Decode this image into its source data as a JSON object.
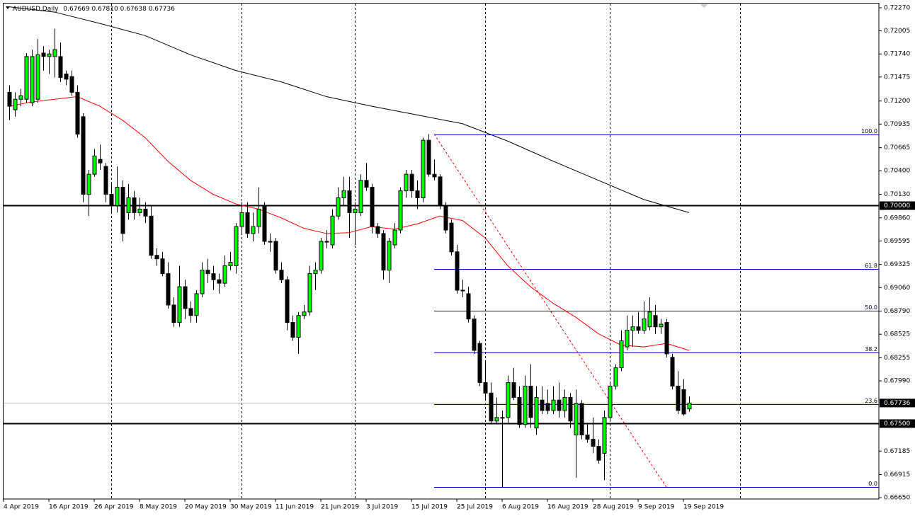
{
  "chart_data": {
    "type": "candlestick",
    "title": "AUDUSD,Daily",
    "header_ohlc": [
      "0.67669",
      "0.67810",
      "0.67638",
      "0.67736"
    ],
    "up_color": "#00ff00",
    "down_color": "#000000",
    "categories": [
      "4 Apr 2019",
      null,
      null,
      null,
      null,
      null,
      null,
      null,
      "16 Apr 2019",
      null,
      null,
      null,
      null,
      null,
      null,
      null,
      "26 Apr 2019",
      null,
      null,
      null,
      null,
      null,
      null,
      null,
      "8 May 2019",
      null,
      null,
      null,
      null,
      null,
      null,
      null,
      "20 May 2019",
      null,
      null,
      null,
      null,
      null,
      null,
      null,
      "30 May 2019",
      null,
      null,
      null,
      null,
      null,
      null,
      null,
      "11 Jun 2019",
      null,
      null,
      null,
      null,
      null,
      null,
      null,
      "21 Jun 2019",
      null,
      null,
      null,
      null,
      null,
      null,
      null,
      "3 Jul 2019",
      null,
      null,
      null,
      null,
      null,
      null,
      null,
      "15 Jul 2019",
      null,
      null,
      null,
      null,
      null,
      null,
      null,
      "25 Jul 2019",
      null,
      null,
      null,
      null,
      null,
      null,
      null,
      "6 Aug 2019",
      null,
      null,
      null,
      null,
      null,
      null,
      null,
      "16 Aug 2019",
      null,
      null,
      null,
      null,
      null,
      null,
      null,
      "28 Aug 2019",
      null,
      null,
      null,
      null,
      null,
      null,
      null,
      "9 Sep 2019",
      null,
      null,
      null,
      null,
      null,
      null,
      null,
      "19 Sep 2019"
    ],
    "open": [
      0.713,
      0.711,
      0.7122,
      0.7122,
      0.7118,
      0.7122,
      0.7175,
      0.7171,
      0.7171,
      0.7171,
      0.7151,
      0.7148,
      0.713,
      0.7102,
      0.7013,
      0.7036,
      0.7053,
      0.7045,
      0.7013,
      0.7,
      0.7021,
      0.6992,
      0.7009,
      0.6992,
      0.6996,
      0.6988,
      0.6943,
      0.6939,
      0.6922,
      0.6886,
      0.6866,
      0.6907,
      0.6882,
      0.6874,
      0.6899,
      0.6926,
      0.6922,
      0.6915,
      0.6911,
      0.6931,
      0.6931,
      0.6976,
      0.6992,
      0.6968,
      0.6976,
      0.7,
      0.6959,
      0.6959,
      0.6926,
      0.6915,
      0.6866,
      0.6849,
      0.6874,
      0.6878,
      0.6922,
      0.6926,
      0.6959,
      0.6955,
      0.6988,
      0.7009,
      0.7017,
      0.6992,
      0.6992,
      0.7029,
      0.7021,
      0.6976,
      0.6968,
      0.6926,
      0.6955,
      0.6972,
      0.7017,
      0.7036,
      0.7017,
      0.7009,
      0.7075,
      0.7036,
      0.7033,
      0.7,
      0.698,
      0.6947,
      0.6903,
      0.6899,
      0.687,
      0.6842,
      0.6797,
      0.6785,
      0.6753,
      0.6757,
      0.6757,
      0.6797,
      0.678,
      0.6749,
      0.6793,
      0.6745,
      0.6777,
      0.6773,
      0.6765,
      0.6777,
      0.6765,
      0.678,
      0.6737,
      0.6773,
      0.6737,
      0.6732,
      0.6724,
      0.6716,
      0.6757,
      0.6793,
      0.6814,
      0.6838,
      0.6857,
      0.6861,
      0.6857,
      0.6861,
      0.6874,
      0.6861,
      0.6866,
      0.6826,
      0.6793,
      0.6789,
      0.67669
    ],
    "high": [
      0.7138,
      0.713,
      0.7134,
      0.7175,
      0.7179,
      0.7191,
      0.7183,
      0.7179,
      0.7203,
      0.7187,
      0.7155,
      0.7155,
      0.7138,
      0.7106,
      0.7041,
      0.7065,
      0.707,
      0.7049,
      0.7025,
      0.7045,
      0.7029,
      0.7025,
      0.7017,
      0.7009,
      0.7004,
      0.7,
      0.6951,
      0.6947,
      0.6935,
      0.6895,
      0.6931,
      0.6915,
      0.689,
      0.6903,
      0.6935,
      0.6939,
      0.6931,
      0.6922,
      0.6943,
      0.6947,
      0.698,
      0.7004,
      0.7004,
      0.6992,
      0.7021,
      0.7004,
      0.6968,
      0.6963,
      0.6935,
      0.6919,
      0.6874,
      0.6878,
      0.6886,
      0.6931,
      0.6935,
      0.6963,
      0.6972,
      0.6996,
      0.7021,
      0.7033,
      0.7033,
      0.7004,
      0.7036,
      0.7049,
      0.7025,
      0.698,
      0.6972,
      0.6963,
      0.698,
      0.7021,
      0.7041,
      0.7041,
      0.7029,
      0.7078,
      0.7082,
      0.7053,
      0.7036,
      0.7004,
      0.6984,
      0.6955,
      0.6915,
      0.6907,
      0.6874,
      0.6845,
      0.6822,
      0.6797,
      0.678,
      0.6765,
      0.6805,
      0.6814,
      0.6793,
      0.6805,
      0.6818,
      0.6793,
      0.6793,
      0.6789,
      0.6793,
      0.6797,
      0.6789,
      0.6785,
      0.6789,
      0.6777,
      0.6749,
      0.6757,
      0.6732,
      0.6765,
      0.6797,
      0.6818,
      0.6857,
      0.6874,
      0.6874,
      0.6878,
      0.689,
      0.6895,
      0.6886,
      0.687,
      0.687,
      0.683,
      0.681,
      0.6801,
      0.6781
    ],
    "low": [
      0.7098,
      0.7102,
      0.7114,
      0.7118,
      0.7114,
      0.7118,
      0.7155,
      0.7151,
      0.7147,
      0.7142,
      0.7138,
      0.7126,
      0.7078,
      0.7004,
      0.6988,
      0.7033,
      0.7041,
      0.7004,
      0.6992,
      0.6992,
      0.6959,
      0.6984,
      0.6984,
      0.6988,
      0.698,
      0.6939,
      0.6931,
      0.6919,
      0.6882,
      0.6861,
      0.6861,
      0.687,
      0.6866,
      0.6866,
      0.6895,
      0.6911,
      0.6903,
      0.6899,
      0.6907,
      0.6926,
      0.6922,
      0.6968,
      0.6963,
      0.6959,
      0.6968,
      0.6955,
      0.6947,
      0.6922,
      0.6911,
      0.6857,
      0.6845,
      0.683,
      0.687,
      0.6874,
      0.6903,
      0.6922,
      0.6951,
      0.6951,
      0.6984,
      0.7,
      0.6963,
      0.6955,
      0.6988,
      0.7017,
      0.6968,
      0.6963,
      0.6915,
      0.6911,
      0.6951,
      0.6968,
      0.7009,
      0.7009,
      0.6996,
      0.7004,
      0.7033,
      0.7029,
      0.6996,
      0.6968,
      0.6943,
      0.6899,
      0.6895,
      0.6866,
      0.683,
      0.6793,
      0.6777,
      0.6749,
      0.6749,
      0.6677,
      0.6749,
      0.6777,
      0.6745,
      0.6745,
      0.6745,
      0.6737,
      0.6761,
      0.6761,
      0.6761,
      0.6757,
      0.6757,
      0.6745,
      0.6688,
      0.6732,
      0.6728,
      0.6716,
      0.6704,
      0.6685,
      0.6753,
      0.6789,
      0.681,
      0.6834,
      0.6838,
      0.6853,
      0.6853,
      0.6857,
      0.6853,
      0.6853,
      0.6826,
      0.6789,
      0.6761,
      0.6759,
      0.67638
    ],
    "close": [
      0.7114,
      0.7122,
      0.7126,
      0.7171,
      0.7171,
      0.7173,
      0.7171,
      0.7174,
      0.7179,
      0.7147,
      0.7145,
      0.713,
      0.7082,
      0.7013,
      0.7036,
      0.7057,
      0.7049,
      0.7013,
      0.7,
      0.7021,
      0.6968,
      0.7009,
      0.6992,
      0.6996,
      0.6988,
      0.6943,
      0.6939,
      0.6922,
      0.6886,
      0.6866,
      0.6907,
      0.6882,
      0.6874,
      0.6899,
      0.6926,
      0.6922,
      0.6915,
      0.6911,
      0.6931,
      0.6935,
      0.6976,
      0.6992,
      0.6968,
      0.6976,
      0.6996,
      0.6959,
      0.6959,
      0.6926,
      0.6915,
      0.6866,
      0.6849,
      0.6874,
      0.6878,
      0.6922,
      0.6926,
      0.6959,
      0.6959,
      0.6988,
      0.7009,
      0.7017,
      0.6992,
      0.6996,
      0.7029,
      0.7021,
      0.6976,
      0.6968,
      0.6926,
      0.6959,
      0.6972,
      0.7017,
      0.7036,
      0.7017,
      0.7009,
      0.7075,
      0.7036,
      0.7033,
      0.7,
      0.6972,
      0.6947,
      0.6903,
      0.6903,
      0.687,
      0.6834,
      0.6797,
      0.6785,
      0.6753,
      0.6757,
      0.6757,
      0.6797,
      0.678,
      0.6749,
      0.6793,
      0.6757,
      0.678,
      0.6765,
      0.6765,
      0.6777,
      0.6765,
      0.678,
      0.6753,
      0.6773,
      0.6737,
      0.6732,
      0.6724,
      0.6708,
      0.6757,
      0.6793,
      0.6814,
      0.6845,
      0.6857,
      0.6861,
      0.6857,
      0.687,
      0.6878,
      0.6861,
      0.6864,
      0.683,
      0.6793,
      0.6765,
      0.6761,
      0.67736
    ],
    "lines": [
      {
        "color": "#ff0000",
        "x": [
          0,
          4,
          8,
          12,
          16,
          20,
          24,
          28,
          32,
          36,
          40,
          44,
          48,
          52,
          56,
          60,
          64,
          68,
          72,
          76,
          80,
          84,
          88,
          92,
          96,
          100,
          104,
          108,
          112,
          116,
          120
        ],
        "values": [
          0.7114,
          0.7119,
          0.7122,
          0.7125,
          0.7114,
          0.7098,
          0.7078,
          0.7051,
          0.7029,
          0.7013,
          0.7002,
          0.6996,
          0.6986,
          0.6974,
          0.6968,
          0.6969,
          0.6976,
          0.6973,
          0.6979,
          0.6988,
          0.6983,
          0.6963,
          0.6931,
          0.6907,
          0.6888,
          0.6872,
          0.6853,
          0.684,
          0.6838,
          0.6842,
          0.6834
        ]
      },
      {
        "color": "#000000",
        "x": [
          0,
          8,
          16,
          24,
          32,
          40,
          48,
          56,
          64,
          72,
          80,
          88,
          96,
          104,
          112,
          120
        ],
        "values": [
          0.7228,
          0.7222,
          0.7209,
          0.7195,
          0.7173,
          0.7155,
          0.7142,
          0.7125,
          0.7114,
          0.7104,
          0.7094,
          0.7074,
          0.7051,
          0.7029,
          0.7007,
          0.6992
        ]
      }
    ],
    "fib": {
      "high": 0.7082,
      "low": 0.6677,
      "x": [
        75,
        116
      ],
      "color": "#0000cd",
      "trend_color": "#ff0000",
      "levels": [
        {
          "value": 100,
          "label": "100.0"
        },
        61.8,
        {
          "value": 50,
          "label": "50.0"
        },
        38.2,
        23.6,
        {
          "value": 0,
          "label": "0.0"
        }
      ]
    },
    "hlines": [
      {
        "value": 0.7,
        "label": "0.70000"
      },
      {
        "value": 0.675,
        "label": "0.67500"
      }
    ],
    "current": {
      "value": 0.67736,
      "label": "0.67736"
    },
    "xgrid": [
      18,
      41,
      61,
      84,
      106,
      129
    ],
    "ylim": [
      0.66635,
      0.72318
    ],
    "yticks": [
      {
        "value": 0.7227,
        "label": "0.72270"
      },
      0.72005,
      {
        "value": 0.7174,
        "label": "0.71740"
      },
      0.71475,
      {
        "value": 0.712,
        "label": "0.71200"
      },
      0.70935,
      0.70665,
      {
        "value": 0.704,
        "label": "0.70400"
      },
      {
        "value": 0.7013,
        "label": "0.70130"
      },
      {
        "value": 0.6986,
        "label": "0.69860"
      },
      0.69595,
      0.69325,
      {
        "value": 0.6906,
        "label": "0.69060"
      },
      {
        "value": 0.6879,
        "label": "0.68790"
      },
      0.68525,
      0.68255,
      {
        "value": 0.6799,
        "label": "0.67990"
      },
      0.67185,
      0.66915,
      {
        "value": 0.6665,
        "label": "0.66650"
      }
    ]
  }
}
